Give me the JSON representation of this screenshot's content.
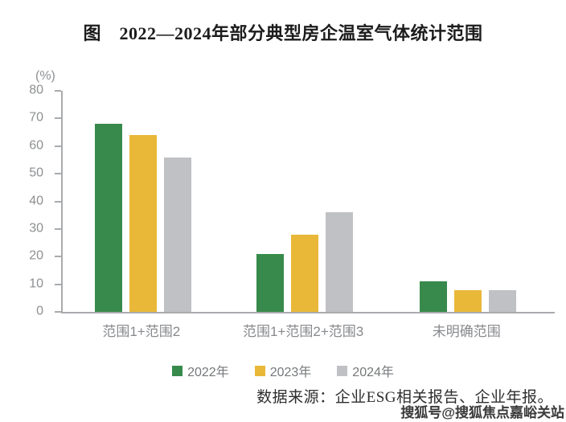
{
  "title": "图　2022—2024年部分典型房企温室气体统计范围",
  "chart_data": {
    "type": "bar",
    "title": "图　2022—2024年部分典型房企温室气体统计范围",
    "unit_label": "(%)",
    "categories": [
      "范围1+范围2",
      "范围1+范围2+范围3",
      "未明确范围"
    ],
    "series": [
      {
        "name": "2022年",
        "color": "#378a4b",
        "values": [
          68,
          21,
          11
        ]
      },
      {
        "name": "2023年",
        "color": "#e9b839",
        "values": [
          64,
          28,
          8
        ]
      },
      {
        "name": "2024年",
        "color": "#bfc1c4",
        "values": [
          56,
          36,
          8
        ]
      }
    ],
    "ylim": [
      0,
      80
    ],
    "yticks": [
      0,
      10,
      20,
      30,
      40,
      50,
      60,
      70,
      80
    ],
    "grid": false,
    "legend_position": "bottom",
    "group_centers_pct": [
      16.3,
      49.2,
      82.4
    ]
  },
  "source_note": "数据来源：企业ESG相关报告、企业年报。",
  "watermark": "搜狐号@搜狐焦点嘉峪关站",
  "colors": {
    "axis": "#a9abad",
    "tick_label": "#8d8f91",
    "category_label": "#87898c",
    "legend_label": "#76787a",
    "title_text": "#1c1c1c",
    "source_text": "#2e2e2e",
    "watermark_text": "#3a3a3a"
  }
}
